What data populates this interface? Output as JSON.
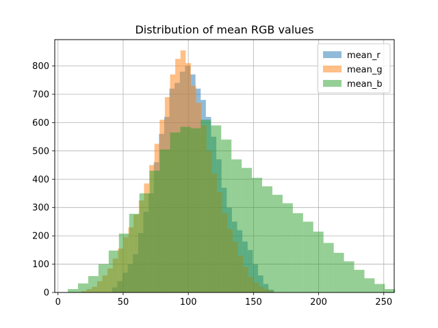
{
  "chart_data": {
    "type": "histogram",
    "title": "Distribution of mean RGB values",
    "xlabel": "",
    "ylabel": "",
    "xlim": [
      -2.5,
      258
    ],
    "ylim": [
      0,
      893
    ],
    "xticks": [
      0,
      50,
      100,
      150,
      200,
      250
    ],
    "yticks": [
      0,
      100,
      200,
      300,
      400,
      500,
      600,
      700,
      800
    ],
    "grid": true,
    "legend": {
      "placement": "top-right"
    },
    "series": [
      {
        "name": "mean_r",
        "color": "#1f77b4",
        "bins_start": 41.5,
        "bin_width": 4.0,
        "counts": [
          18,
          40,
          70,
          100,
          135,
          210,
          285,
          350,
          460,
          560,
          620,
          720,
          740,
          780,
          800,
          770,
          720,
          680,
          620,
          550,
          470,
          370,
          300,
          250,
          220,
          180,
          150,
          100,
          60,
          30,
          10
        ]
      },
      {
        "name": "mean_g",
        "color": "#ff7f0e",
        "bins_start": 18,
        "bin_width": 4.0,
        "counts": [
          5,
          12,
          20,
          40,
          60,
          85,
          120,
          155,
          195,
          230,
          275,
          325,
          385,
          450,
          525,
          610,
          690,
          770,
          825,
          855,
          810,
          730,
          670,
          590,
          500,
          420,
          355,
          280,
          225,
          180,
          130,
          90,
          55,
          35,
          20,
          12,
          5
        ]
      },
      {
        "name": "mean_b",
        "color": "#2ca02c",
        "bins_start": 7.5,
        "bin_width": 7.85,
        "counts": [
          12,
          32,
          58,
          100,
          148,
          208,
          278,
          350,
          430,
          505,
          565,
          585,
          580,
          610,
          590,
          540,
          470,
          440,
          405,
          375,
          345,
          315,
          280,
          250,
          215,
          175,
          140,
          110,
          80,
          50,
          30,
          12
        ]
      }
    ]
  }
}
